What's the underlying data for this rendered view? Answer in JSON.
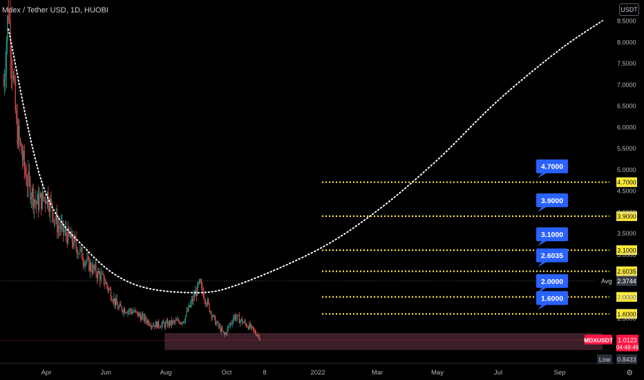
{
  "header": {
    "title": "Mdex / Tether USD, 1D, HUOBI",
    "currency": "USDT"
  },
  "colors": {
    "background": "#000000",
    "up_candle": "#26a69a",
    "down_candle": "#ef5350",
    "curve": "#ffffff",
    "level_line": "#ffeb3b",
    "callout": "#2962ff",
    "price_tag": "#ff1744",
    "avg_tag": "#363a45",
    "low_tag": "#2a2e39",
    "range_box": "#3a1f28"
  },
  "chart_data": {
    "type": "candlestick",
    "symbol": "MDXUSDT",
    "x_ticks": [
      "Apr",
      "Jun",
      "Aug",
      "Oct",
      "8",
      "2022",
      "Mar",
      "May",
      "Jul",
      "Sep"
    ],
    "y_ticks": [
      "8.5000",
      "8.0000",
      "7.5000",
      "7.0000",
      "6.5000",
      "6.0000",
      "5.5000",
      "5.0000",
      "4.5000",
      "4.0000",
      "3.5000",
      "3.0000",
      "2.5000",
      "2.0000",
      "1.5000"
    ],
    "ylim": [
      0.75,
      8.9
    ],
    "price_path": [
      {
        "date": "2021-02-20",
        "price": 7.0
      },
      {
        "date": "2021-02-25",
        "price": 8.8
      },
      {
        "date": "2021-03-05",
        "price": 6.0
      },
      {
        "date": "2021-03-15",
        "price": 4.8
      },
      {
        "date": "2021-03-25",
        "price": 4.2
      },
      {
        "date": "2021-04-05",
        "price": 4.4
      },
      {
        "date": "2021-04-15",
        "price": 3.7
      },
      {
        "date": "2021-05-01",
        "price": 3.3
      },
      {
        "date": "2021-05-15",
        "price": 2.8
      },
      {
        "date": "2021-06-01",
        "price": 2.4
      },
      {
        "date": "2021-06-15",
        "price": 1.75
      },
      {
        "date": "2021-07-01",
        "price": 1.65
      },
      {
        "date": "2021-07-20",
        "price": 1.35
      },
      {
        "date": "2021-08-01",
        "price": 1.35
      },
      {
        "date": "2021-08-20",
        "price": 1.45
      },
      {
        "date": "2021-09-05",
        "price": 2.3
      },
      {
        "date": "2021-09-20",
        "price": 1.45
      },
      {
        "date": "2021-09-30",
        "price": 1.1
      },
      {
        "date": "2021-10-10",
        "price": 1.55
      },
      {
        "date": "2021-10-25",
        "price": 1.3
      },
      {
        "date": "2021-11-05",
        "price": 1.05
      }
    ],
    "price_levels": [
      "4.7000",
      "3.9000",
      "3.1000",
      "2.6035",
      "2.0000",
      "1.6000"
    ],
    "callouts": [
      "4.7000",
      "3.9000",
      "3.1000",
      "2.6035",
      "2.0000",
      "1.6000"
    ],
    "curve": {
      "style": "dotted",
      "points": [
        {
          "date": "2021-02-25",
          "price": 8.3
        },
        {
          "date": "2021-04-01",
          "price": 4.6
        },
        {
          "date": "2021-05-15",
          "price": 3.1
        },
        {
          "date": "2021-07-01",
          "price": 2.3
        },
        {
          "date": "2021-09-01",
          "price": 2.1
        },
        {
          "date": "2021-10-15",
          "price": 2.3
        },
        {
          "date": "2022-01-01",
          "price": 3.1
        },
        {
          "date": "2022-03-01",
          "price": 4.0
        },
        {
          "date": "2022-05-01",
          "price": 5.2
        },
        {
          "date": "2022-07-01",
          "price": 6.6
        },
        {
          "date": "2022-09-01",
          "price": 7.8
        },
        {
          "date": "2022-10-15",
          "price": 8.5
        }
      ]
    },
    "avg_line": {
      "label": "Avg",
      "value": "2.3744"
    },
    "last_price": {
      "symbol": "MDXUSDT",
      "value": "1.0123",
      "countdown": "04:48:49"
    },
    "low": {
      "label": "Low",
      "value": "0.8433"
    },
    "range_box": {
      "from": "2021-08-01",
      "to": "2022-10-15",
      "high": 1.15,
      "low": 0.75
    }
  }
}
